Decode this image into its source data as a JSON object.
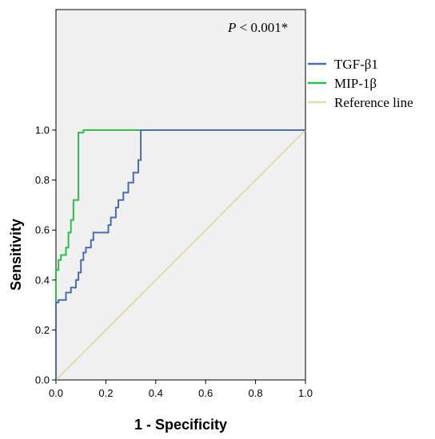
{
  "chart_data": {
    "type": "line",
    "xlabel": "1 - Specificity",
    "ylabel": "Sensitivity",
    "xlim": [
      0,
      1
    ],
    "ylim": [
      0,
      1
    ],
    "x_ticks": [
      "0.0",
      "0.2",
      "0.4",
      "0.6",
      "0.8",
      "1.0"
    ],
    "y_ticks": [
      "0.0",
      "0.2",
      "0.4",
      "0.6",
      "0.8",
      "1.0"
    ],
    "annotation": {
      "italic": "P",
      "rest": " < 0.001*"
    },
    "legend_position": "right",
    "series": [
      {
        "name": "TGF-β1",
        "color": "#4a6cb3",
        "x": [
          0,
          0,
          0.01,
          0.01,
          0.04,
          0.04,
          0.06,
          0.06,
          0.08,
          0.08,
          0.09,
          0.09,
          0.1,
          0.1,
          0.11,
          0.11,
          0.12,
          0.12,
          0.14,
          0.14,
          0.15,
          0.15,
          0.17,
          0.17,
          0.21,
          0.21,
          0.22,
          0.22,
          0.24,
          0.24,
          0.25,
          0.25,
          0.27,
          0.27,
          0.29,
          0.29,
          0.31,
          0.31,
          0.33,
          0.33,
          0.34,
          0.34,
          1.0
        ],
        "y": [
          0,
          0.31,
          0.31,
          0.32,
          0.32,
          0.35,
          0.35,
          0.37,
          0.37,
          0.4,
          0.4,
          0.43,
          0.43,
          0.48,
          0.48,
          0.51,
          0.51,
          0.53,
          0.53,
          0.56,
          0.56,
          0.59,
          0.59,
          0.59,
          0.59,
          0.62,
          0.62,
          0.65,
          0.65,
          0.69,
          0.69,
          0.72,
          0.72,
          0.75,
          0.75,
          0.79,
          0.79,
          0.83,
          0.83,
          0.88,
          0.88,
          1.0,
          1.0
        ]
      },
      {
        "name": "MIP-1β",
        "color": "#2bbf4a",
        "x": [
          0,
          0,
          0.01,
          0.01,
          0.02,
          0.02,
          0.04,
          0.04,
          0.05,
          0.05,
          0.06,
          0.06,
          0.07,
          0.07,
          0.09,
          0.09,
          0.11,
          0.11,
          1.0
        ],
        "y": [
          0,
          0.44,
          0.44,
          0.48,
          0.48,
          0.5,
          0.5,
          0.53,
          0.53,
          0.59,
          0.59,
          0.64,
          0.64,
          0.72,
          0.72,
          0.99,
          0.99,
          1.0,
          1.0
        ]
      },
      {
        "name": "Reference line",
        "color": "#e2dbae",
        "x": [
          0,
          1.0
        ],
        "y": [
          0,
          1.0
        ]
      }
    ]
  }
}
